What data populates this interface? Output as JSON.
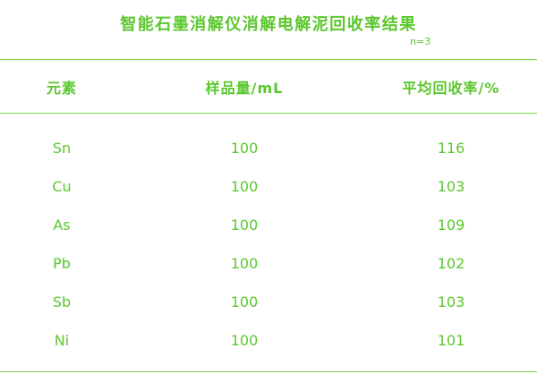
{
  "colors": {
    "text": "#5bc72e",
    "line": "#7ed348",
    "background": "#ffffff"
  },
  "chart_data": {
    "type": "table",
    "title": "智能石墨消解仪消解电解泥回收率结果",
    "annotation": "n=3",
    "columns": [
      "元素",
      "样品量/mL",
      "平均回收率/%"
    ],
    "rows": [
      [
        "Sn",
        "100",
        "116"
      ],
      [
        "Cu",
        "100",
        "103"
      ],
      [
        "As",
        "100",
        "109"
      ],
      [
        "Pb",
        "100",
        "102"
      ],
      [
        "Sb",
        "100",
        "103"
      ],
      [
        "Ni",
        "100",
        "101"
      ]
    ]
  }
}
